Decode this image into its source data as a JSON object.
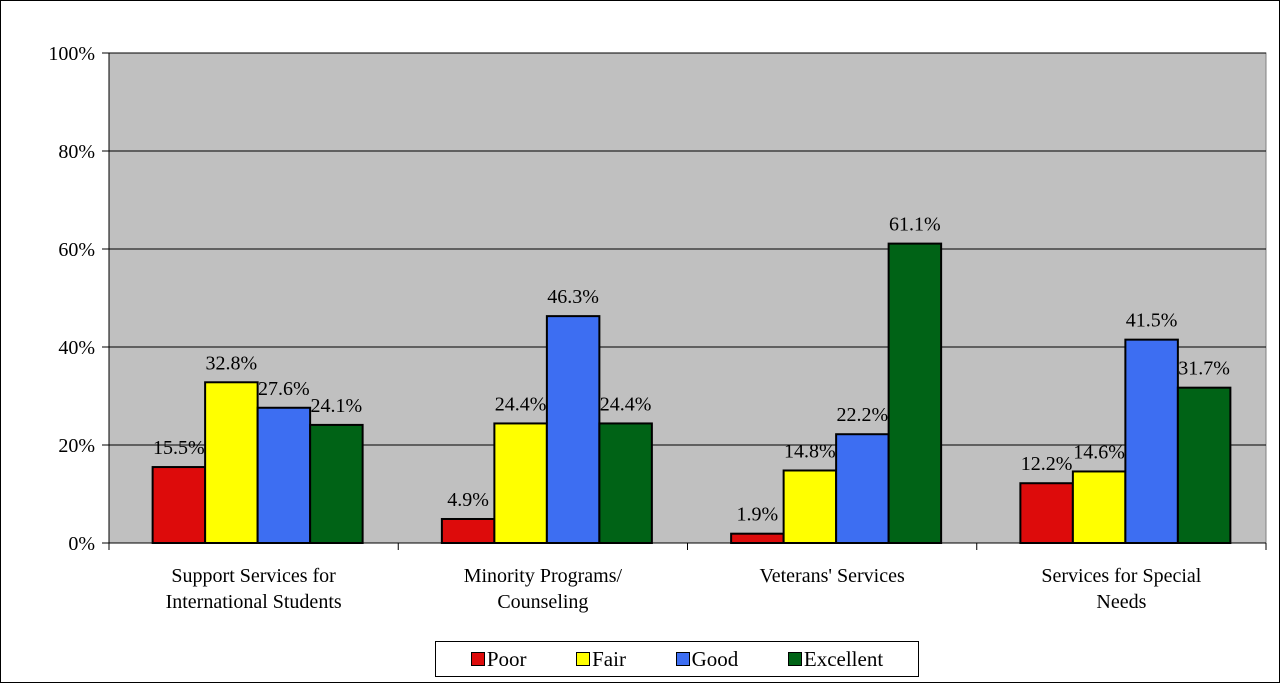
{
  "chart_data": {
    "type": "bar",
    "title": "",
    "xlabel": "",
    "ylabel": "",
    "ylim": [
      0,
      100
    ],
    "y_ticks": [
      "0%",
      "20%",
      "40%",
      "60%",
      "80%",
      "100%"
    ],
    "y_tick_values": [
      0,
      20,
      40,
      60,
      80,
      100
    ],
    "grid": true,
    "legend_position": "bottom",
    "categories": [
      [
        "Support Services for",
        "International Students"
      ],
      [
        "Minority Programs/",
        "Counseling"
      ],
      [
        "Veterans' Services"
      ],
      [
        "Services for Special",
        "Needs"
      ]
    ],
    "series": [
      {
        "name": "Poor",
        "color": "#dd0b0b",
        "values": [
          15.5,
          4.9,
          1.9,
          12.2
        ],
        "labels": [
          "15.5%",
          "4.9%",
          "1.9%",
          "12.2%"
        ]
      },
      {
        "name": "Fair",
        "color": "#ffff00",
        "values": [
          32.8,
          24.4,
          14.8,
          14.6
        ],
        "labels": [
          "32.8%",
          "24.4%",
          "14.8%",
          "14.6%"
        ]
      },
      {
        "name": "Good",
        "color": "#3d6ef2",
        "values": [
          27.6,
          46.3,
          22.2,
          41.5
        ],
        "labels": [
          "27.6%",
          "46.3%",
          "22.2%",
          "41.5%"
        ]
      },
      {
        "name": "Excellent",
        "color": "#006316",
        "values": [
          24.1,
          24.4,
          61.1,
          31.7
        ],
        "labels": [
          "24.1%",
          "24.4%",
          "61.1%",
          "31.7%"
        ]
      }
    ],
    "plot_background": "#c0c0c0"
  }
}
